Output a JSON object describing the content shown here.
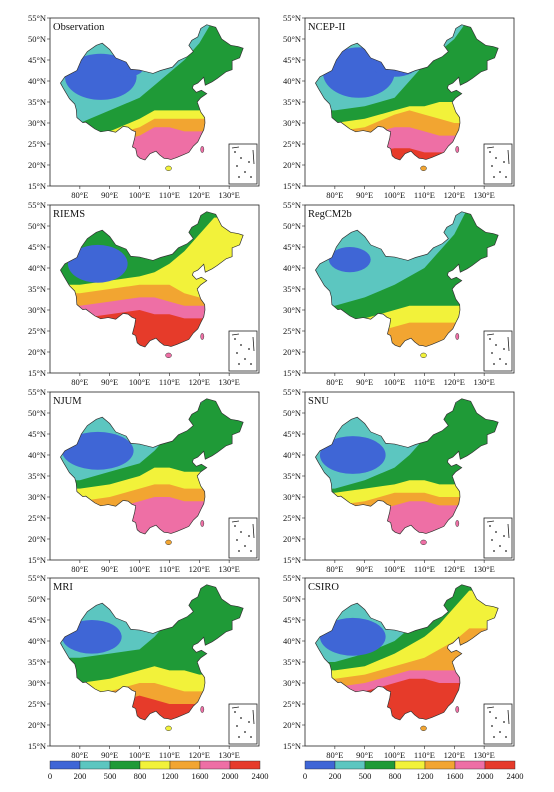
{
  "panels": [
    {
      "id": "obs",
      "label": "Observation"
    },
    {
      "id": "ncep",
      "label": "NCEP-II"
    },
    {
      "id": "riems",
      "label": "RIEMS"
    },
    {
      "id": "regcm",
      "label": "RegCM2b"
    },
    {
      "id": "njum",
      "label": "NJUM"
    },
    {
      "id": "snu",
      "label": "SNU"
    },
    {
      "id": "mri",
      "label": "MRI"
    },
    {
      "id": "csiro",
      "label": "CSIRO"
    }
  ],
  "latitude_labels": [
    "15°N",
    "20°N",
    "25°N",
    "30°N",
    "35°N",
    "40°N",
    "45°N",
    "50°N",
    "55°N"
  ],
  "longitude_labels": [
    "80°E",
    "90°E",
    "100°E",
    "110°E",
    "120°E",
    "130°E"
  ],
  "legend": {
    "ticks": [
      "0",
      "200",
      "500",
      "800",
      "1200",
      "1600",
      "2000",
      "2400"
    ],
    "colors": [
      "#3f66d6",
      "#5cc6c0",
      "#1f9a37",
      "#f2f23a",
      "#f2a531",
      "#ee6fa5",
      "#e63b2a"
    ]
  }
}
